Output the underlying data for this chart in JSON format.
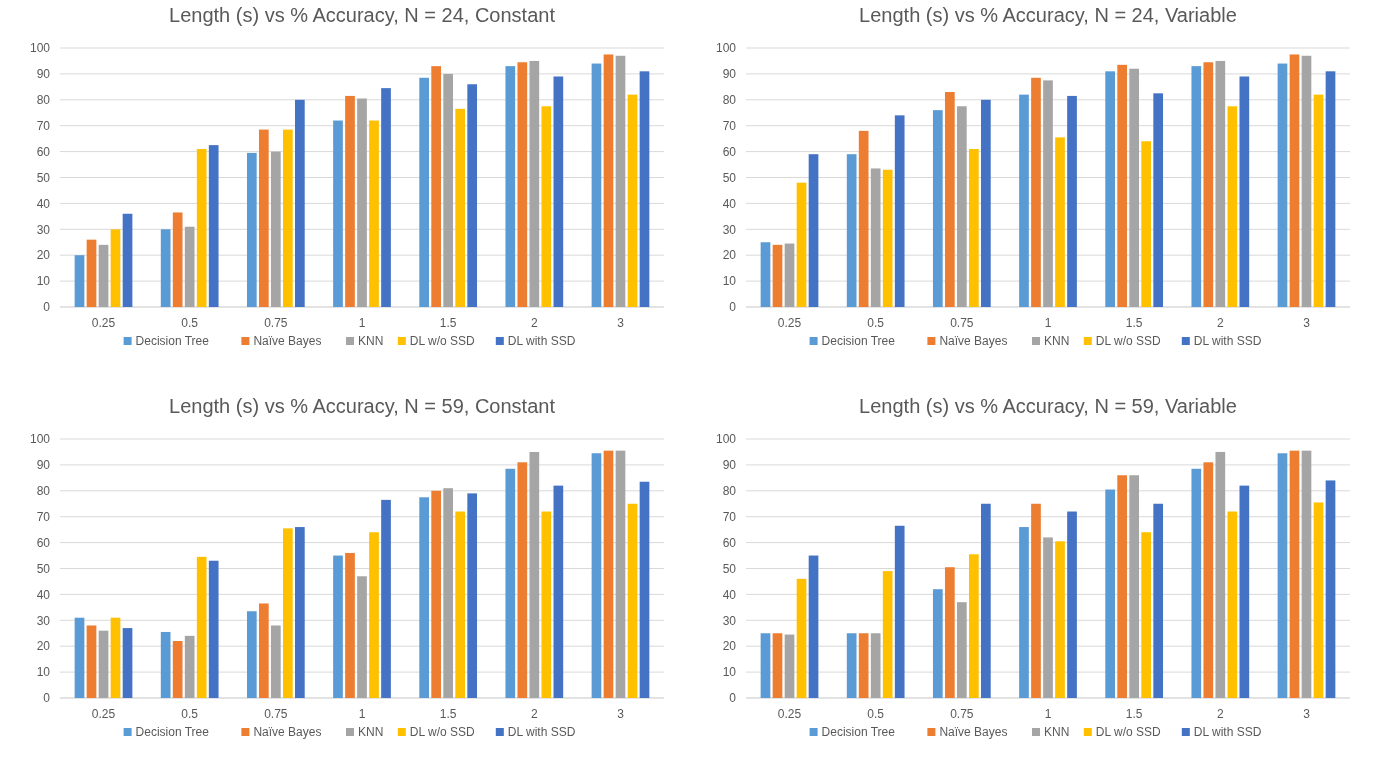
{
  "chart_data": [
    {
      "type": "bar",
      "title": "Length (s) vs  % Accuracy, N = 24, Constant",
      "categories": [
        "0.25",
        "0.5",
        "0.75",
        "1",
        "1.5",
        "2",
        "3"
      ],
      "ylim": [
        0,
        100
      ],
      "yticks": [
        0,
        10,
        20,
        30,
        40,
        50,
        60,
        70,
        80,
        90,
        100
      ],
      "grid": "y",
      "legend": "bottom",
      "series": [
        {
          "name": "Decision Tree",
          "color": "#5b9bd5",
          "values": [
            20,
            30,
            59.5,
            72,
            88.5,
            93,
            94
          ]
        },
        {
          "name": "Naïve Bayes",
          "color": "#ed7d31",
          "values": [
            26,
            36.5,
            68.5,
            81.5,
            93,
            94.5,
            97.5
          ]
        },
        {
          "name": "KNN",
          "color": "#a5a5a5",
          "values": [
            24,
            31,
            60,
            80.5,
            90,
            95,
            97
          ]
        },
        {
          "name": "DL w/o SSD",
          "color": "#ffc000",
          "values": [
            30,
            61,
            68.5,
            72,
            76.5,
            77.5,
            82
          ]
        },
        {
          "name": "DL with SSD",
          "color": "#4472c4",
          "values": [
            36,
            62.5,
            80,
            84.5,
            86,
            89,
            91
          ]
        }
      ]
    },
    {
      "type": "bar",
      "title": "Length (s) vs  % Accuracy, N = 24, Variable",
      "categories": [
        "0.25",
        "0.5",
        "0.75",
        "1",
        "1.5",
        "2",
        "3"
      ],
      "ylim": [
        0,
        100
      ],
      "yticks": [
        0,
        10,
        20,
        30,
        40,
        50,
        60,
        70,
        80,
        90,
        100
      ],
      "grid": "y",
      "legend": "bottom",
      "series": [
        {
          "name": "Decision Tree",
          "color": "#5b9bd5",
          "values": [
            25,
            59,
            76,
            82,
            91,
            93,
            94
          ]
        },
        {
          "name": "Naïve Bayes",
          "color": "#ed7d31",
          "values": [
            24,
            68,
            83,
            88.5,
            93.5,
            94.5,
            97.5
          ]
        },
        {
          "name": "KNN",
          "color": "#a5a5a5",
          "values": [
            24.5,
            53.5,
            77.5,
            87.5,
            92,
            95,
            97
          ]
        },
        {
          "name": "DL w/o SSD",
          "color": "#ffc000",
          "values": [
            48,
            53,
            61,
            65.5,
            64,
            77.5,
            82
          ]
        },
        {
          "name": "DL with SSD",
          "color": "#4472c4",
          "values": [
            59,
            74,
            80,
            81.5,
            82.5,
            89,
            91
          ]
        }
      ]
    },
    {
      "type": "bar",
      "title": "Length (s) vs  % Accuracy, N = 59, Constant",
      "categories": [
        "0.25",
        "0.5",
        "0.75",
        "1",
        "1.5",
        "2",
        "3"
      ],
      "ylim": [
        0,
        100
      ],
      "yticks": [
        0,
        10,
        20,
        30,
        40,
        50,
        60,
        70,
        80,
        90,
        100
      ],
      "grid": "y",
      "legend": "bottom",
      "series": [
        {
          "name": "Decision Tree",
          "color": "#5b9bd5",
          "values": [
            31,
            25.5,
            33.5,
            55,
            77.5,
            88.5,
            94.5
          ]
        },
        {
          "name": "Naïve Bayes",
          "color": "#ed7d31",
          "values": [
            28,
            22,
            36.5,
            56,
            80,
            91,
            95.5
          ]
        },
        {
          "name": "KNN",
          "color": "#a5a5a5",
          "values": [
            26,
            24,
            28,
            47,
            81,
            95,
            95.5
          ]
        },
        {
          "name": "DL w/o SSD",
          "color": "#ffc000",
          "values": [
            31,
            54.5,
            65.5,
            64,
            72,
            72,
            75
          ]
        },
        {
          "name": "DL with SSD",
          "color": "#4472c4",
          "values": [
            27,
            53,
            66,
            76.5,
            79,
            82,
            83.5
          ]
        }
      ]
    },
    {
      "type": "bar",
      "title": "Length (s) vs  % Accuracy, N = 59, Variable",
      "categories": [
        "0.25",
        "0.5",
        "0.75",
        "1",
        "1.5",
        "2",
        "3"
      ],
      "ylim": [
        0,
        100
      ],
      "yticks": [
        0,
        10,
        20,
        30,
        40,
        50,
        60,
        70,
        80,
        90,
        100
      ],
      "grid": "y",
      "legend": "bottom",
      "series": [
        {
          "name": "Decision Tree",
          "color": "#5b9bd5",
          "values": [
            25,
            25,
            42,
            66,
            80.5,
            88.5,
            94.5
          ]
        },
        {
          "name": "Naïve Bayes",
          "color": "#ed7d31",
          "values": [
            25,
            25,
            50.5,
            75,
            86,
            91,
            95.5
          ]
        },
        {
          "name": "KNN",
          "color": "#a5a5a5",
          "values": [
            24.5,
            25,
            37,
            62,
            86,
            95,
            95.5
          ]
        },
        {
          "name": "DL w/o SSD",
          "color": "#ffc000",
          "values": [
            46,
            49,
            55.5,
            60.5,
            64,
            72,
            75.5
          ]
        },
        {
          "name": "DL with SSD",
          "color": "#4472c4",
          "values": [
            55,
            66.5,
            75,
            72,
            75,
            82,
            84
          ]
        }
      ]
    }
  ]
}
